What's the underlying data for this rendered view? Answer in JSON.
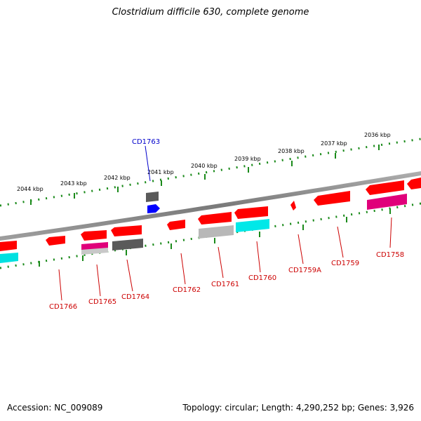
{
  "title": "Clostridium difficile 630, complete genome",
  "footer": {
    "accession": "Accession: NC_009089",
    "summary": "Topology: circular; Length: 4,290,252 bp; Genes: 3,926"
  },
  "ruler_labels": [
    "2044 kbp",
    "2043 kbp",
    "2042 kbp",
    "2041 kbp",
    "2040 kbp",
    "2039 kbp",
    "2038 kbp",
    "2037 kbp",
    "2036 kbp"
  ],
  "genes": [
    {
      "name": "CD1766",
      "strand": "-",
      "label_color": "#cc0000"
    },
    {
      "name": "CD1765",
      "strand": "-",
      "label_color": "#cc0000"
    },
    {
      "name": "CD1764",
      "strand": "-",
      "label_color": "#cc0000"
    },
    {
      "name": "CD1763",
      "strand": "+",
      "label_color": "#0000cc"
    },
    {
      "name": "CD1762",
      "strand": "-",
      "label_color": "#cc0000"
    },
    {
      "name": "CD1761",
      "strand": "-",
      "label_color": "#cc0000"
    },
    {
      "name": "CD1760",
      "strand": "-",
      "label_color": "#cc0000"
    },
    {
      "name": "CD1759A",
      "strand": "-",
      "label_color": "#cc0000"
    },
    {
      "name": "CD1759",
      "strand": "-",
      "label_color": "#cc0000"
    },
    {
      "name": "CD1758",
      "strand": "-",
      "label_color": "#cc0000"
    }
  ],
  "colors": {
    "cds": "#ff0000",
    "gene_gray": "#666666",
    "rna_light_gray": "#b8b8b8",
    "cyan": "#00ffff",
    "magenta": "#e0007a",
    "blue": "#0000ff",
    "backbone": "#8a8a8a",
    "ticks": "#1a8a1a"
  }
}
